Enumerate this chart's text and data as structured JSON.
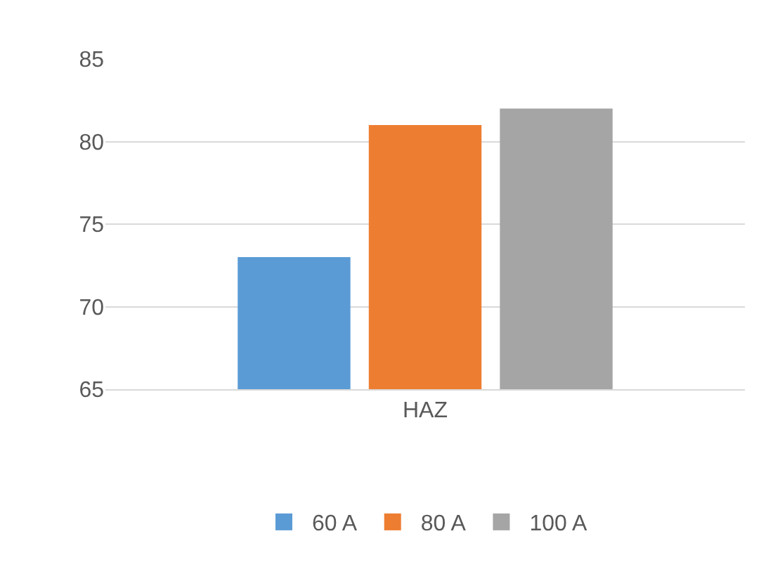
{
  "chart_data": {
    "type": "bar",
    "categories": [
      "HAZ"
    ],
    "series": [
      {
        "name": "60 A",
        "color": "#5b9bd5",
        "values": [
          73
        ]
      },
      {
        "name": "80 A",
        "color": "#ed7d31",
        "values": [
          81
        ]
      },
      {
        "name": "100 A",
        "color": "#a5a5a5",
        "values": [
          82
        ]
      }
    ],
    "ylim": [
      65,
      85
    ],
    "yticks": [
      65,
      70,
      75,
      80,
      85
    ],
    "grid": "y",
    "legend": "bottom"
  }
}
